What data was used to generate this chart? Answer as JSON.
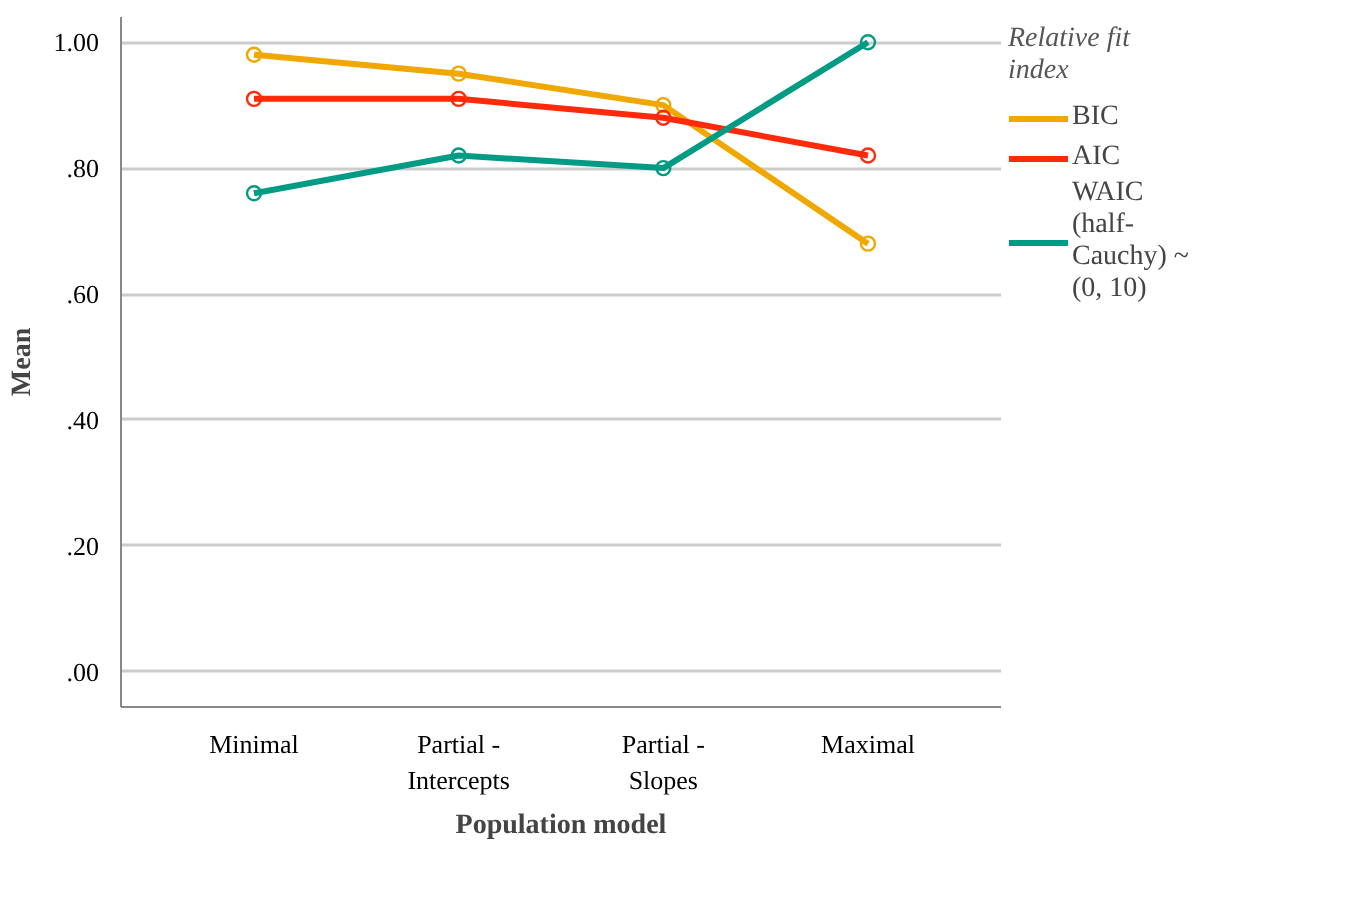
{
  "chart_data": {
    "type": "line",
    "xlabel": "Population model",
    "ylabel": "Mean",
    "legend_title": "Relative fit index",
    "categories": [
      "Minimal",
      "Partial -\nIntercepts",
      "Partial -\nSlopes",
      "Maximal"
    ],
    "series": [
      {
        "name": "BIC",
        "color": "#f0a800",
        "values": [
          0.98,
          0.95,
          0.9,
          0.68
        ]
      },
      {
        "name": "AIC",
        "color": "#ff2a0a",
        "values": [
          0.91,
          0.91,
          0.88,
          0.82
        ]
      },
      {
        "name": "WAIC (half-Cauchy) ~ (0, 10)",
        "color": "#009b84",
        "values": [
          0.76,
          0.82,
          0.8,
          1.0
        ]
      }
    ],
    "ylim": [
      -0.056,
      1.04
    ],
    "yticks": [
      {
        "value": 0,
        "label": ".00"
      },
      {
        "value": 0.2,
        "label": ".20"
      },
      {
        "value": 0.4,
        "label": ".40"
      },
      {
        "value": 0.6,
        "label": ".60"
      },
      {
        "value": 0.8,
        "label": ".80"
      },
      {
        "value": 1.0,
        "label": "1.00"
      }
    ],
    "grid": "y",
    "legend": "right",
    "marker": "circle",
    "line_style": "solid"
  }
}
